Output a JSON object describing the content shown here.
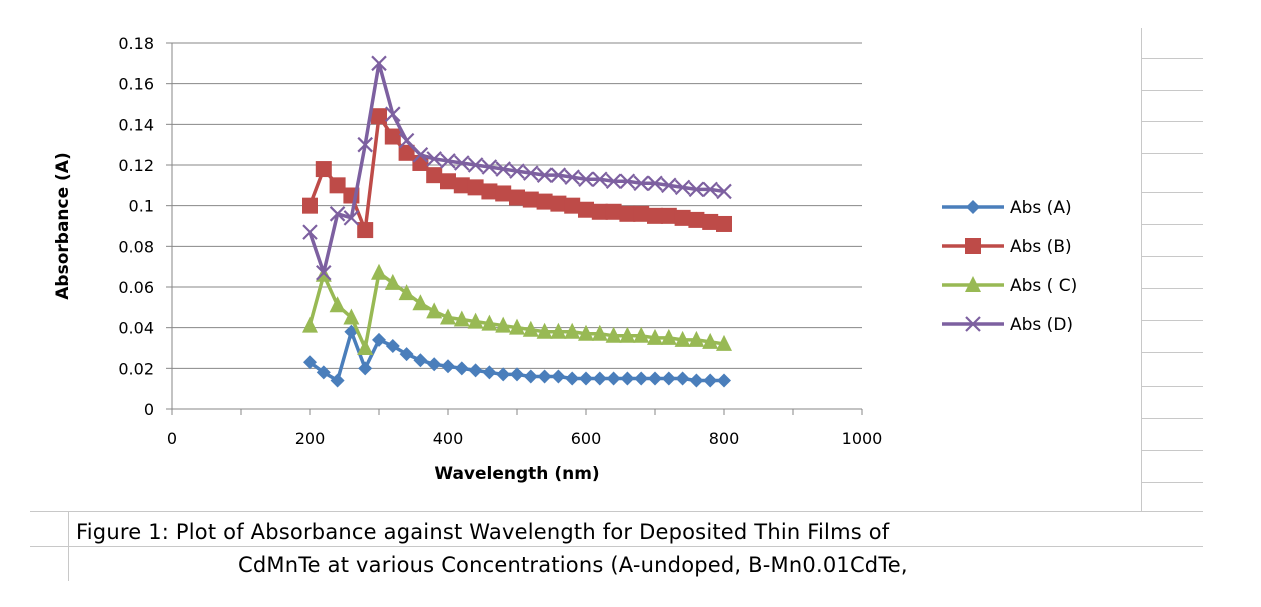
{
  "chart_data": {
    "type": "line",
    "title": "",
    "xlabel": "Wavelength (nm)",
    "ylabel": "Absorbance (A)",
    "xlim": [
      0,
      1000
    ],
    "ylim": [
      0,
      0.18
    ],
    "x_ticks": [
      "0",
      "200",
      "400",
      "600",
      "800",
      "1000"
    ],
    "y_ticks": [
      "0",
      "0.02",
      "0.04",
      "0.06",
      "0.08",
      "0.1",
      "0.12",
      "0.14",
      "0.16",
      "0.18"
    ],
    "grid": "horizontal",
    "legend_position": "right",
    "x": [
      200,
      220,
      240,
      260,
      280,
      300,
      320,
      340,
      360,
      380,
      400,
      420,
      440,
      460,
      480,
      500,
      520,
      540,
      560,
      580,
      600,
      620,
      640,
      660,
      680,
      700,
      720,
      740,
      760,
      780,
      800
    ],
    "series": [
      {
        "name": "Abs (A)",
        "color": "#4a7ebb",
        "marker": "diamond",
        "values": [
          0.023,
          0.018,
          0.014,
          0.038,
          0.02,
          0.034,
          0.031,
          0.027,
          0.024,
          0.022,
          0.021,
          0.02,
          0.019,
          0.018,
          0.017,
          0.017,
          0.016,
          0.016,
          0.016,
          0.015,
          0.015,
          0.015,
          0.015,
          0.015,
          0.015,
          0.015,
          0.015,
          0.015,
          0.014,
          0.014,
          0.014
        ]
      },
      {
        "name": "Abs (B)",
        "color": "#be4b48",
        "marker": "square",
        "values": [
          0.1,
          0.118,
          0.11,
          0.105,
          0.088,
          0.144,
          0.134,
          0.126,
          0.121,
          0.115,
          0.112,
          0.11,
          0.109,
          0.107,
          0.106,
          0.104,
          0.103,
          0.102,
          0.101,
          0.1,
          0.098,
          0.097,
          0.097,
          0.096,
          0.096,
          0.095,
          0.095,
          0.094,
          0.093,
          0.092,
          0.091
        ]
      },
      {
        "name": "Abs ( C)",
        "color": "#98b954",
        "marker": "triangle",
        "values": [
          0.041,
          0.066,
          0.051,
          0.045,
          0.03,
          0.067,
          0.062,
          0.057,
          0.052,
          0.048,
          0.045,
          0.044,
          0.043,
          0.042,
          0.041,
          0.04,
          0.039,
          0.038,
          0.038,
          0.038,
          0.037,
          0.037,
          0.036,
          0.036,
          0.036,
          0.035,
          0.035,
          0.034,
          0.034,
          0.033,
          0.032
        ]
      },
      {
        "name": "Abs (D)",
        "color": "#7d60a0",
        "marker": "x",
        "values": [
          0.087,
          0.067,
          0.096,
          0.094,
          0.13,
          0.17,
          0.145,
          0.132,
          0.125,
          0.123,
          0.122,
          0.121,
          0.12,
          0.119,
          0.118,
          0.117,
          0.116,
          0.115,
          0.115,
          0.114,
          0.113,
          0.113,
          0.112,
          0.112,
          0.111,
          0.111,
          0.11,
          0.109,
          0.108,
          0.108,
          0.107
        ]
      }
    ]
  },
  "caption": {
    "line1": "Figure 1: Plot of Absorbance against Wavelength for Deposited Thin Films of",
    "line2": "CdMnTe at various Concentrations (A-undoped, B-Mn0.01CdTe,"
  }
}
